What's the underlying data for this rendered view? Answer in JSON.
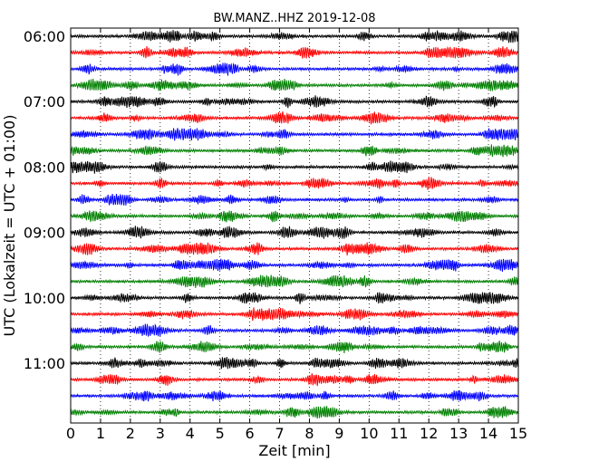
{
  "chart_data": {
    "type": "line",
    "title": "BW.MANZ..HHZ 2019-12-08",
    "xlabel": "Zeit  [min]",
    "ylabel": "UTC (Lokalzeit = UTC + 01:00)",
    "xlim": [
      0,
      15
    ],
    "x_ticks": [
      "0",
      "1",
      "2",
      "3",
      "4",
      "5",
      "6",
      "7",
      "8",
      "9",
      "10",
      "11",
      "12",
      "13",
      "14",
      "15"
    ],
    "y_ticks": [
      "06:00",
      "07:00",
      "08:00",
      "09:00",
      "10:00",
      "11:00"
    ],
    "grid": "vertical dotted at each minute",
    "line_colors": [
      "#000000",
      "#ff0000",
      "#0000ff",
      "#008000"
    ],
    "series": [
      {
        "start": "06:00"
      },
      {
        "start": "06:15"
      },
      {
        "start": "06:30"
      },
      {
        "start": "06:45"
      },
      {
        "start": "07:00"
      },
      {
        "start": "07:15"
      },
      {
        "start": "07:30"
      },
      {
        "start": "07:45"
      },
      {
        "start": "08:00"
      },
      {
        "start": "08:15"
      },
      {
        "start": "08:30"
      },
      {
        "start": "08:45"
      },
      {
        "start": "09:00"
      },
      {
        "start": "09:15"
      },
      {
        "start": "09:30"
      },
      {
        "start": "09:45"
      },
      {
        "start": "10:00"
      },
      {
        "start": "10:15"
      },
      {
        "start": "10:30"
      },
      {
        "start": "10:45"
      },
      {
        "start": "11:00"
      },
      {
        "start": "11:15"
      },
      {
        "start": "11:30"
      },
      {
        "start": "11:45"
      }
    ]
  }
}
